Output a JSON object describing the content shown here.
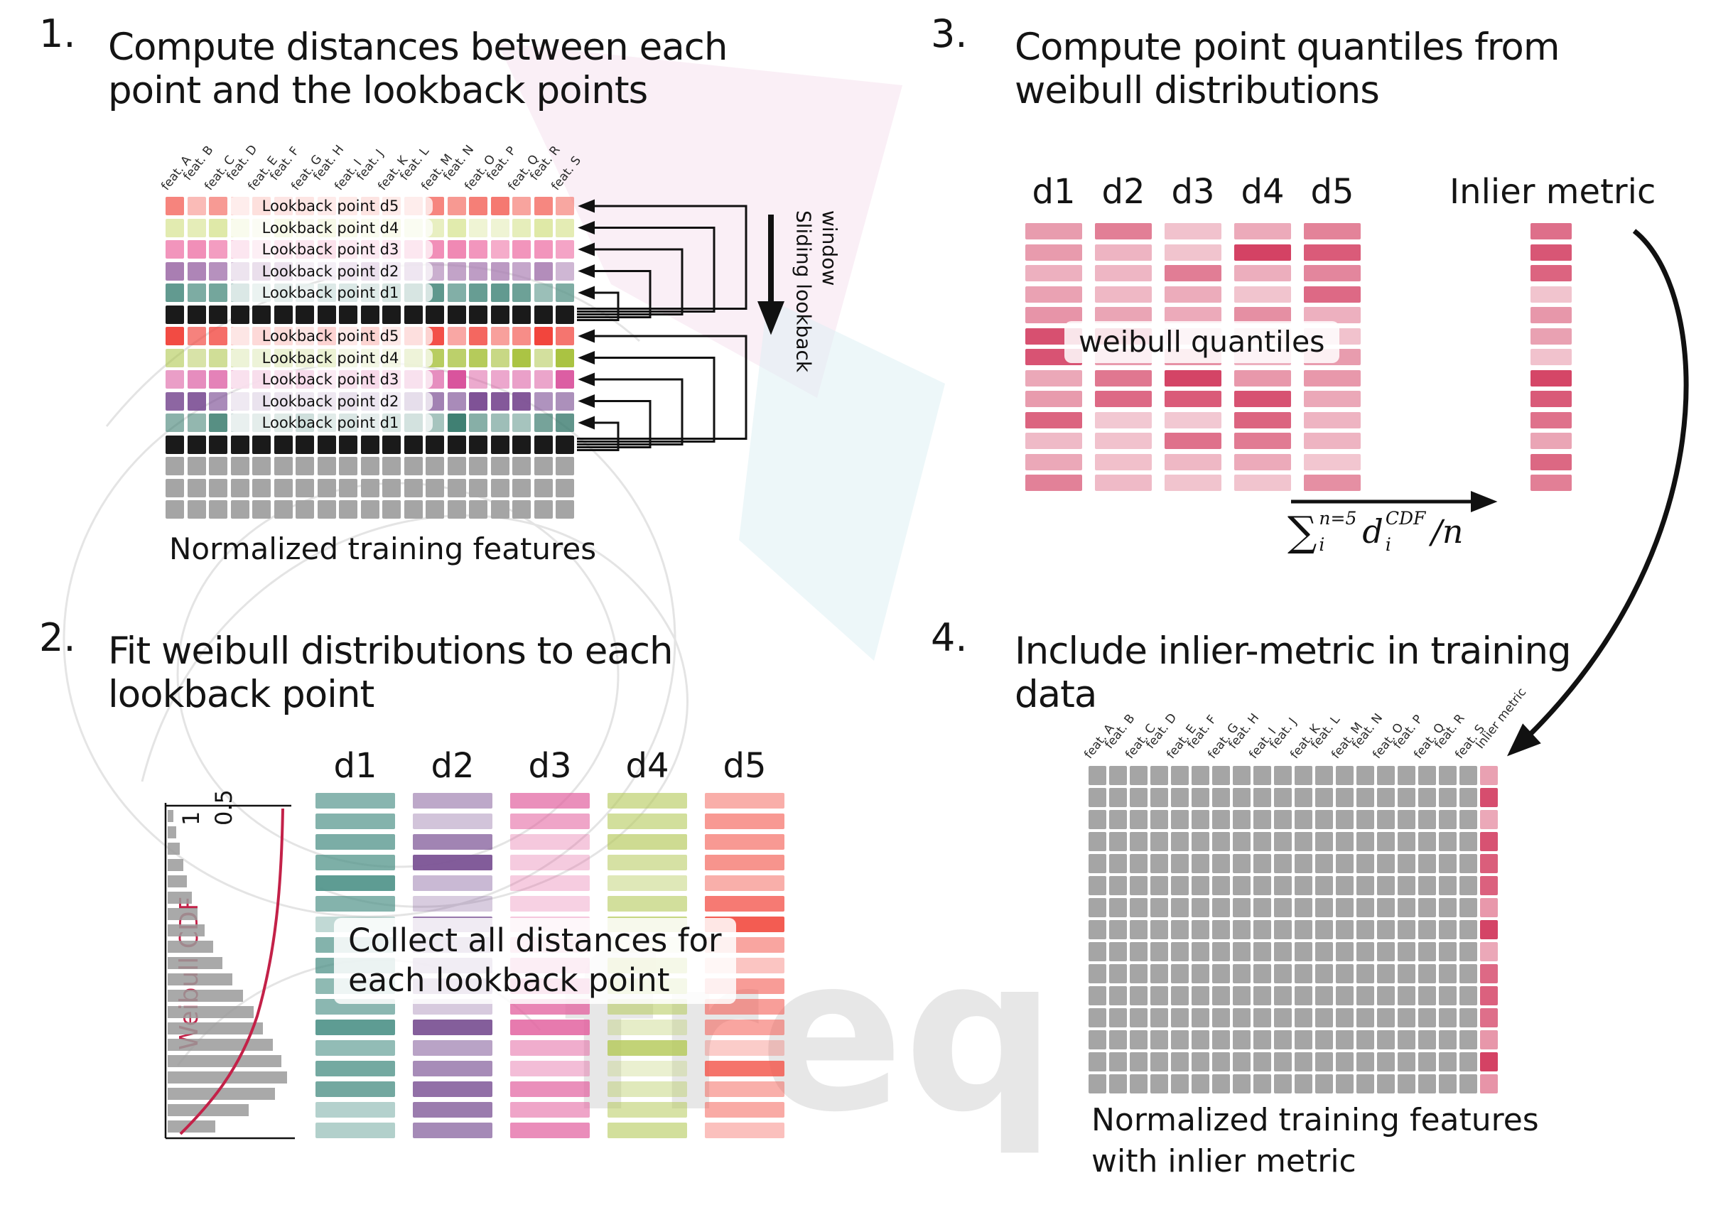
{
  "watermark": {
    "text": "freq"
  },
  "colors": {
    "ink": "#141414",
    "black_cell": "#1a1a1a",
    "gray_cell": "#a5a5a5"
  },
  "panel1": {
    "number": "1.",
    "title": [
      "Compute distances between each",
      "point and the lookback points"
    ],
    "features": [
      "feat. A",
      "feat. B",
      "feat. C",
      "feat. D",
      "feat. E",
      "feat. F",
      "feat. G",
      "feat. H",
      "feat. I",
      "feat. J",
      "feat. K",
      "feat. L",
      "feat. M",
      "feat. N",
      "feat. O",
      "feat. P",
      "feat. Q",
      "feat. R",
      "feat. S"
    ],
    "row_groups": [
      {
        "rows": [
          {
            "label": "Lookback point d5",
            "color": "#f46f66"
          },
          {
            "label": "Lookback point d4",
            "color": "#dce79f"
          },
          {
            "label": "Lookback point d3",
            "color": "#ef7fae"
          },
          {
            "label": "Lookback point d2",
            "color": "#a87cb1"
          },
          {
            "label": "Lookback point d1",
            "color": "#5d978c"
          }
        ]
      },
      {
        "rows": [
          {
            "label": "Lookback point d5",
            "color": "#f2453d"
          },
          {
            "label": "Lookback point d4",
            "color": "#a8c23e"
          },
          {
            "label": "Lookback point d3",
            "color": "#d9529c"
          },
          {
            "label": "Lookback point d2",
            "color": "#7c4f94"
          },
          {
            "label": "Lookback point d1",
            "color": "#3e7e71"
          }
        ]
      }
    ],
    "gray_row_count": 3,
    "caption": "Normalized training features",
    "side_label": "Sliding lookback window"
  },
  "panel2": {
    "number": "2.",
    "title": [
      "Fit weibull distributions to each",
      "lookback point"
    ],
    "plot": {
      "ylabel": "Weibull CDF",
      "tick_labels": [
        "1",
        "0.5"
      ],
      "hist": [
        0.05,
        0.07,
        0.1,
        0.13,
        0.16,
        0.2,
        0.25,
        0.31,
        0.38,
        0.46,
        0.54,
        0.63,
        0.72,
        0.8,
        0.88,
        0.95,
        1.0,
        0.9,
        0.68,
        0.4
      ]
    },
    "columns": [
      {
        "label": "d1",
        "color": "#4d9187"
      },
      {
        "label": "d2",
        "color": "#7d5596"
      },
      {
        "label": "d3",
        "color": "#e2619f"
      },
      {
        "label": "d4",
        "color": "#b6ca5d"
      },
      {
        "label": "d5",
        "color": "#f3554b"
      }
    ],
    "overlay": [
      "Collect all distances for",
      "each lookback point"
    ]
  },
  "panel3": {
    "number": "3.",
    "title": [
      "Compute point quantiles from",
      "weibull distributions"
    ],
    "columns": [
      "d1",
      "d2",
      "d3",
      "d4",
      "d5"
    ],
    "bar_color": "#d23a5e",
    "overlay": "weibull quantiles",
    "inlier_label": "Inlier metric",
    "formula": {
      "sum": "∑",
      "sum_sup": "n=5",
      "sum_sub": "i",
      "term": "d",
      "term_sup": "CDF",
      "term_sub": "i",
      "tail": "/n"
    }
  },
  "panel4": {
    "number": "4.",
    "title": [
      "Include inlier-metric in training",
      "data"
    ],
    "features": [
      "feat. A",
      "feat. B",
      "feat. C",
      "feat. D",
      "feat. E",
      "feat. F",
      "feat. G",
      "feat. H",
      "feat. I",
      "feat. J",
      "feat. K",
      "feat. L",
      "feat. M",
      "feat. N",
      "feat. O",
      "feat. P",
      "feat. Q",
      "feat. R",
      "feat. S"
    ],
    "inlier_label": "Inlier metric",
    "caption": [
      "Normalized training features",
      "with inlier metric"
    ]
  }
}
